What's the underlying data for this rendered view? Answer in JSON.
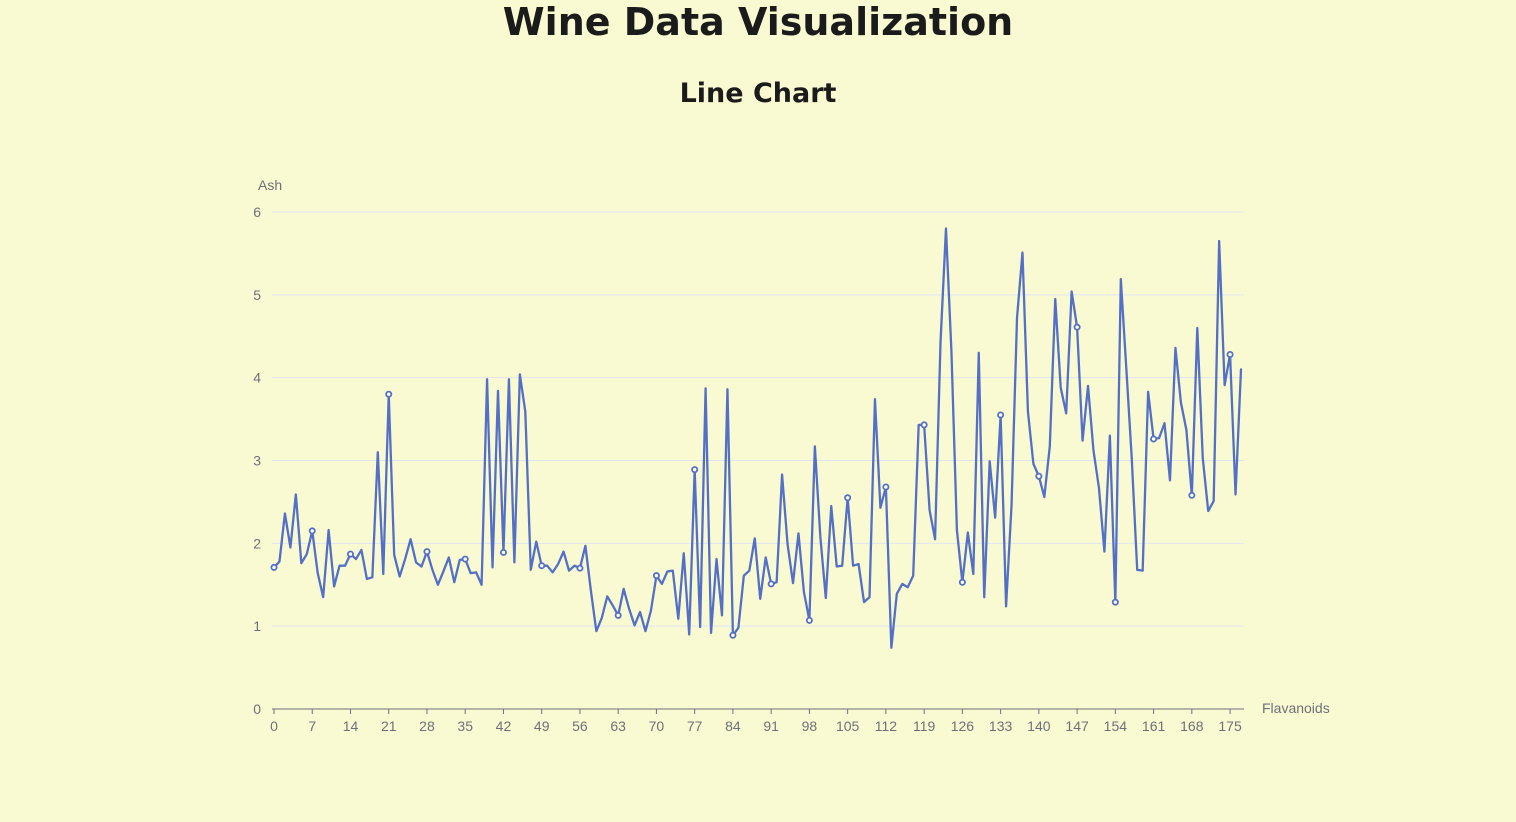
{
  "page": {
    "title": "Wine Data Visualization"
  },
  "chart_data": {
    "type": "line",
    "title": "Line Chart",
    "xlabel": "Flavanoids",
    "ylabel": "Ash",
    "ylim": [
      0,
      6
    ],
    "yticks": [
      0,
      1,
      2,
      3,
      4,
      5,
      6
    ],
    "xticks": [
      0,
      7,
      14,
      21,
      28,
      35,
      42,
      49,
      56,
      63,
      70,
      77,
      84,
      91,
      98,
      105,
      112,
      119,
      126,
      133,
      140,
      147,
      154,
      161,
      168,
      175
    ],
    "grid": true,
    "line_color": "#5470c6",
    "marker_indices": [
      0,
      7,
      14,
      21,
      28,
      35,
      42,
      49,
      56,
      63,
      70,
      77,
      84,
      91,
      98,
      105,
      112,
      119,
      126,
      133,
      140,
      147,
      154,
      161,
      168,
      175
    ],
    "series": [
      {
        "values": [
          1.71,
          1.78,
          2.36,
          1.95,
          2.59,
          1.76,
          1.87,
          2.15,
          1.64,
          1.35,
          2.16,
          1.48,
          1.73,
          1.73,
          1.87,
          1.81,
          1.92,
          1.57,
          1.59,
          3.1,
          1.63,
          3.8,
          1.86,
          1.6,
          1.81,
          2.05,
          1.77,
          1.72,
          1.9,
          1.68,
          1.5,
          1.66,
          1.83,
          1.53,
          1.8,
          1.81,
          1.64,
          1.65,
          1.5,
          3.98,
          1.71,
          3.84,
          1.89,
          3.98,
          1.77,
          4.04,
          3.59,
          1.68,
          2.02,
          1.73,
          1.73,
          1.65,
          1.75,
          1.9,
          1.67,
          1.73,
          1.7,
          1.97,
          1.43,
          0.94,
          1.1,
          1.36,
          1.25,
          1.13,
          1.45,
          1.21,
          1.01,
          1.17,
          0.94,
          1.19,
          1.61,
          1.51,
          1.66,
          1.67,
          1.09,
          1.88,
          0.9,
          2.89,
          0.99,
          3.87,
          0.92,
          1.81,
          1.13,
          3.86,
          0.89,
          0.98,
          1.61,
          1.67,
          2.06,
          1.33,
          1.83,
          1.51,
          1.53,
          2.83,
          1.99,
          1.52,
          2.12,
          1.41,
          1.07,
          3.17,
          2.08,
          1.34,
          2.45,
          1.72,
          1.73,
          2.55,
          1.73,
          1.75,
          1.29,
          1.35,
          3.74,
          2.43,
          2.68,
          0.74,
          1.39,
          1.51,
          1.47,
          1.61,
          3.43,
          3.43,
          2.4,
          2.05,
          4.43,
          5.8,
          4.31,
          2.16,
          1.53,
          2.13,
          1.63,
          4.3,
          1.35,
          2.99,
          2.31,
          3.55,
          1.24,
          2.46,
          4.72,
          5.51,
          3.59,
          2.96,
          2.81,
          2.56,
          3.17,
          4.95,
          3.88,
          3.57,
          5.04,
          4.61,
          3.24,
          3.9,
          3.12,
          2.67,
          1.9,
          3.3,
          1.29,
          5.19,
          4.12,
          3.03,
          1.68,
          1.67,
          3.83,
          3.26,
          3.27,
          3.45,
          2.76,
          4.36,
          3.7,
          3.37,
          2.58,
          4.6,
          3.03,
          2.39,
          2.51,
          5.65,
          3.91,
          4.28,
          2.59,
          4.1
        ]
      }
    ]
  }
}
